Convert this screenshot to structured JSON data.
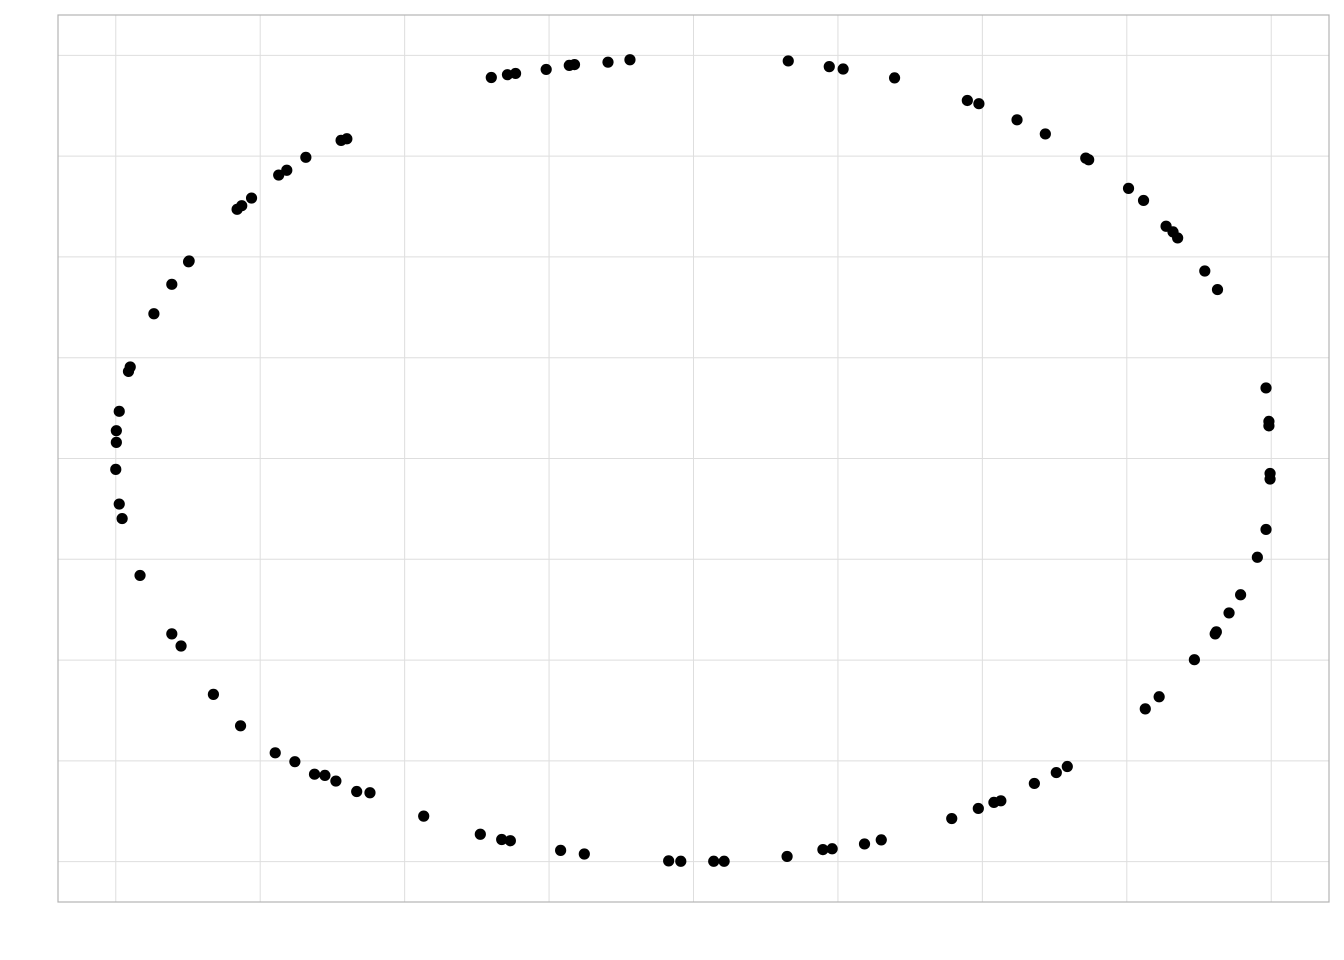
{
  "chart_data": {
    "type": "scatter",
    "title": "",
    "xlabel": "",
    "ylabel": "",
    "xlim": [
      -1.1,
      1.1
    ],
    "ylim": [
      -1.1,
      1.1
    ],
    "x_gridlines": [
      -1.0,
      -0.75,
      -0.5,
      -0.25,
      0.0,
      0.25,
      0.5,
      0.75,
      1.0
    ],
    "y_gridlines": [
      -1.0,
      -0.75,
      -0.5,
      -0.25,
      0.0,
      0.25,
      0.5,
      0.75,
      1.0
    ],
    "tick_labels_shown": false,
    "grid": true,
    "point_color": "#000000",
    "grid_color": "#dedede",
    "border_color": "#b3b3b3",
    "points": [
      [
        -0.35,
        0.945
      ],
      [
        -0.322,
        0.952
      ],
      [
        -0.308,
        0.955
      ],
      [
        -0.255,
        0.965
      ],
      [
        -0.215,
        0.975
      ],
      [
        -0.206,
        0.977
      ],
      [
        -0.148,
        0.983
      ],
      [
        -0.11,
        0.989
      ],
      [
        0.164,
        0.986
      ],
      [
        0.235,
        0.972
      ],
      [
        0.259,
        0.966
      ],
      [
        0.348,
        0.944
      ],
      [
        0.474,
        0.888
      ],
      [
        0.494,
        0.88
      ],
      [
        0.56,
        0.84
      ],
      [
        0.609,
        0.805
      ],
      [
        0.679,
        0.745
      ],
      [
        0.684,
        0.741
      ],
      [
        0.753,
        0.67
      ],
      [
        0.779,
        0.64
      ],
      [
        0.818,
        0.576
      ],
      [
        0.83,
        0.562
      ],
      [
        0.838,
        0.547
      ],
      [
        0.885,
        0.465
      ],
      [
        0.907,
        0.419
      ],
      [
        0.991,
        0.175
      ],
      [
        0.996,
        0.092
      ],
      [
        0.996,
        0.081
      ],
      [
        0.998,
        -0.037
      ],
      [
        0.998,
        -0.051
      ],
      [
        0.991,
        -0.176
      ],
      [
        0.976,
        -0.245
      ],
      [
        0.947,
        -0.338
      ],
      [
        0.927,
        -0.383
      ],
      [
        0.905,
        -0.43
      ],
      [
        0.903,
        -0.435
      ],
      [
        0.867,
        -0.499
      ],
      [
        0.806,
        -0.591
      ],
      [
        0.782,
        -0.621
      ],
      [
        0.647,
        -0.764
      ],
      [
        0.628,
        -0.779
      ],
      [
        0.59,
        -0.806
      ],
      [
        0.532,
        -0.849
      ],
      [
        0.52,
        -0.853
      ],
      [
        0.493,
        -0.868
      ],
      [
        0.447,
        -0.893
      ],
      [
        0.325,
        -0.946
      ],
      [
        0.296,
        -0.956
      ],
      [
        0.24,
        -0.968
      ],
      [
        0.224,
        -0.97
      ],
      [
        0.162,
        -0.987
      ],
      [
        0.053,
        -0.999
      ],
      [
        0.035,
        -0.999
      ],
      [
        -0.022,
        -0.999
      ],
      [
        -0.043,
        -0.998
      ],
      [
        -0.189,
        -0.981
      ],
      [
        -0.23,
        -0.972
      ],
      [
        -0.317,
        -0.948
      ],
      [
        -0.332,
        -0.945
      ],
      [
        -0.369,
        -0.932
      ],
      [
        -0.467,
        -0.887
      ],
      [
        -0.56,
        -0.829
      ],
      [
        -0.583,
        -0.826
      ],
      [
        -0.619,
        -0.8
      ],
      [
        -0.638,
        -0.786
      ],
      [
        -0.656,
        -0.783
      ],
      [
        -0.69,
        -0.752
      ],
      [
        -0.724,
        -0.73
      ],
      [
        -0.784,
        -0.663
      ],
      [
        -0.831,
        -0.585
      ],
      [
        -0.887,
        -0.465
      ],
      [
        -0.903,
        -0.435
      ],
      [
        -0.958,
        -0.29
      ],
      [
        -0.989,
        -0.149
      ],
      [
        -0.994,
        -0.113
      ],
      [
        -1.0,
        -0.027
      ],
      [
        -0.999,
        0.04
      ],
      [
        -0.999,
        0.069
      ],
      [
        -0.994,
        0.117
      ],
      [
        -0.978,
        0.216
      ],
      [
        -0.975,
        0.227
      ],
      [
        -0.934,
        0.359
      ],
      [
        -0.903,
        0.432
      ],
      [
        -0.874,
        0.488
      ],
      [
        -0.873,
        0.49
      ],
      [
        -0.79,
        0.618
      ],
      [
        -0.782,
        0.627
      ],
      [
        -0.765,
        0.646
      ],
      [
        -0.718,
        0.703
      ],
      [
        -0.704,
        0.715
      ],
      [
        -0.671,
        0.747
      ],
      [
        -0.61,
        0.789
      ],
      [
        -0.6,
        0.793
      ]
    ]
  }
}
